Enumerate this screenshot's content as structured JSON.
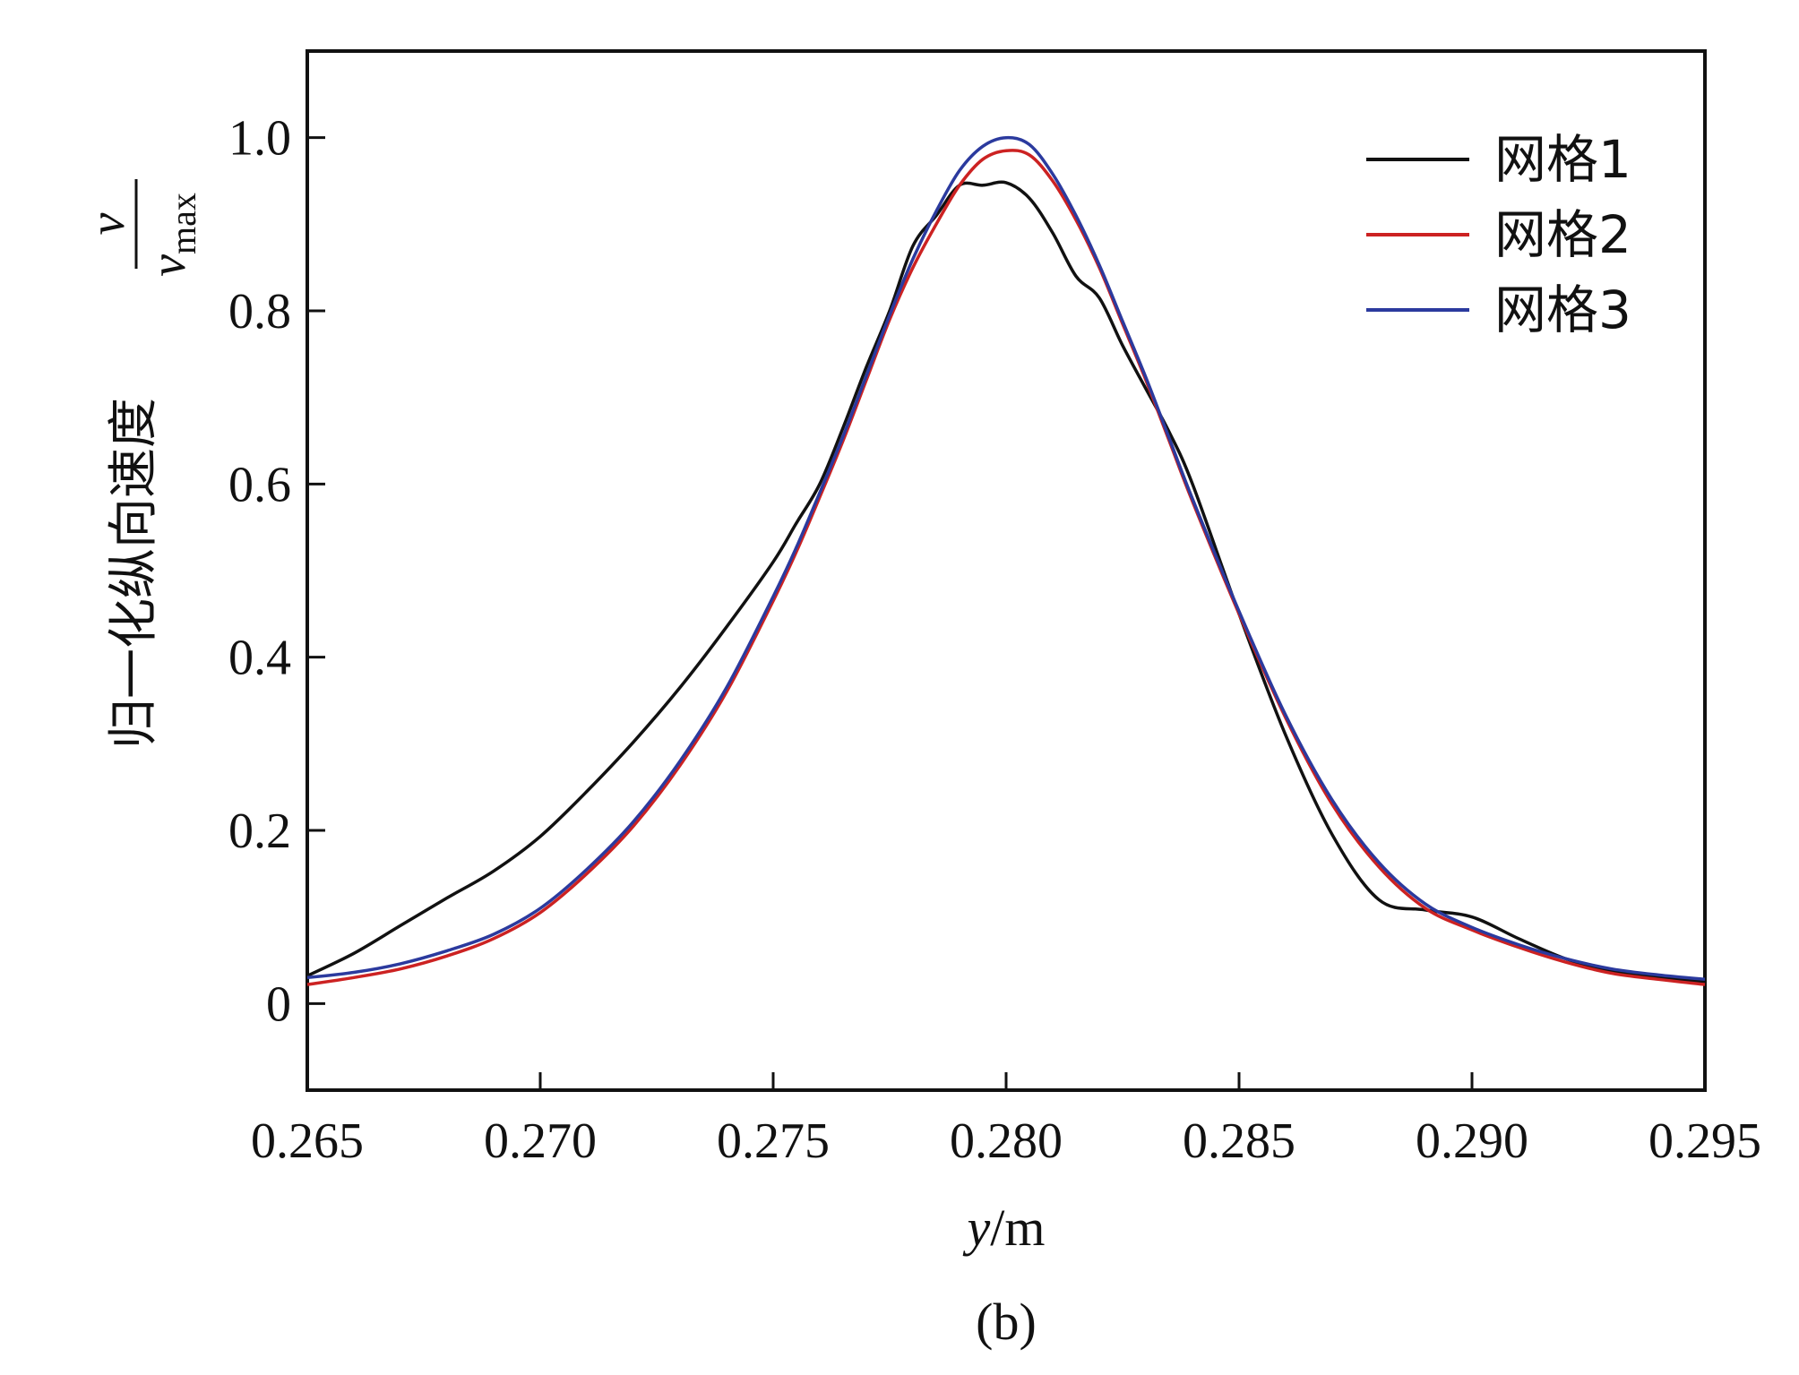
{
  "chart_data": {
    "type": "line",
    "caption": "(b)",
    "xlabel": "y/m",
    "xlabel_var": "y",
    "xlabel_unit": "/m",
    "ylabel": "归一化纵向速度",
    "ylabel_fraction": {
      "numerator": "v",
      "denominator": "v",
      "denominator_sub": "max"
    },
    "xlim": [
      0.265,
      0.295
    ],
    "ylim": [
      -0.1,
      1.1
    ],
    "xticks": [
      "0.265",
      "0.270",
      "0.275",
      "0.280",
      "0.285",
      "0.290",
      "0.295"
    ],
    "xtick_values": [
      0.265,
      0.27,
      0.275,
      0.28,
      0.285,
      0.29,
      0.295
    ],
    "yticks": [
      "0",
      "0.2",
      "0.4",
      "0.6",
      "0.8",
      "1.0"
    ],
    "ytick_values": [
      0,
      0.2,
      0.4,
      0.6,
      0.8,
      1.0
    ],
    "legend_position": "top-right",
    "grid": false,
    "x": [
      0.265,
      0.266,
      0.267,
      0.268,
      0.269,
      0.27,
      0.271,
      0.272,
      0.273,
      0.274,
      0.275,
      0.2755,
      0.276,
      0.2765,
      0.277,
      0.2775,
      0.278,
      0.2785,
      0.279,
      0.2795,
      0.28,
      0.2805,
      0.281,
      0.2815,
      0.282,
      0.2825,
      0.283,
      0.2835,
      0.284,
      0.285,
      0.286,
      0.287,
      0.288,
      0.289,
      0.29,
      0.291,
      0.292,
      0.293,
      0.294,
      0.295
    ],
    "series": [
      {
        "name": "网格1",
        "color": "#111111",
        "values": [
          0.032,
          0.058,
          0.09,
          0.122,
          0.153,
          0.193,
          0.245,
          0.302,
          0.365,
          0.435,
          0.51,
          0.555,
          0.6,
          0.665,
          0.735,
          0.8,
          0.875,
          0.91,
          0.945,
          0.945,
          0.948,
          0.93,
          0.89,
          0.84,
          0.815,
          0.76,
          0.71,
          0.66,
          0.6,
          0.45,
          0.31,
          0.195,
          0.12,
          0.108,
          0.1,
          0.075,
          0.052,
          0.037,
          0.03,
          0.025
        ]
      },
      {
        "name": "网格2",
        "color": "#cc2222",
        "values": [
          0.022,
          0.03,
          0.04,
          0.055,
          0.075,
          0.105,
          0.15,
          0.205,
          0.275,
          0.36,
          0.465,
          0.522,
          0.585,
          0.65,
          0.72,
          0.79,
          0.85,
          0.9,
          0.945,
          0.975,
          0.985,
          0.98,
          0.95,
          0.905,
          0.85,
          0.785,
          0.72,
          0.65,
          0.58,
          0.45,
          0.33,
          0.23,
          0.158,
          0.11,
          0.085,
          0.065,
          0.048,
          0.035,
          0.028,
          0.022
        ]
      },
      {
        "name": "网格3",
        "color": "#2b3a9e",
        "values": [
          0.03,
          0.036,
          0.046,
          0.061,
          0.08,
          0.11,
          0.155,
          0.21,
          0.28,
          0.365,
          0.47,
          0.527,
          0.59,
          0.655,
          0.725,
          0.795,
          0.86,
          0.915,
          0.962,
          0.99,
          1.0,
          0.992,
          0.958,
          0.91,
          0.853,
          0.788,
          0.723,
          0.653,
          0.583,
          0.453,
          0.333,
          0.235,
          0.163,
          0.115,
          0.088,
          0.068,
          0.052,
          0.04,
          0.033,
          0.028
        ]
      }
    ]
  }
}
